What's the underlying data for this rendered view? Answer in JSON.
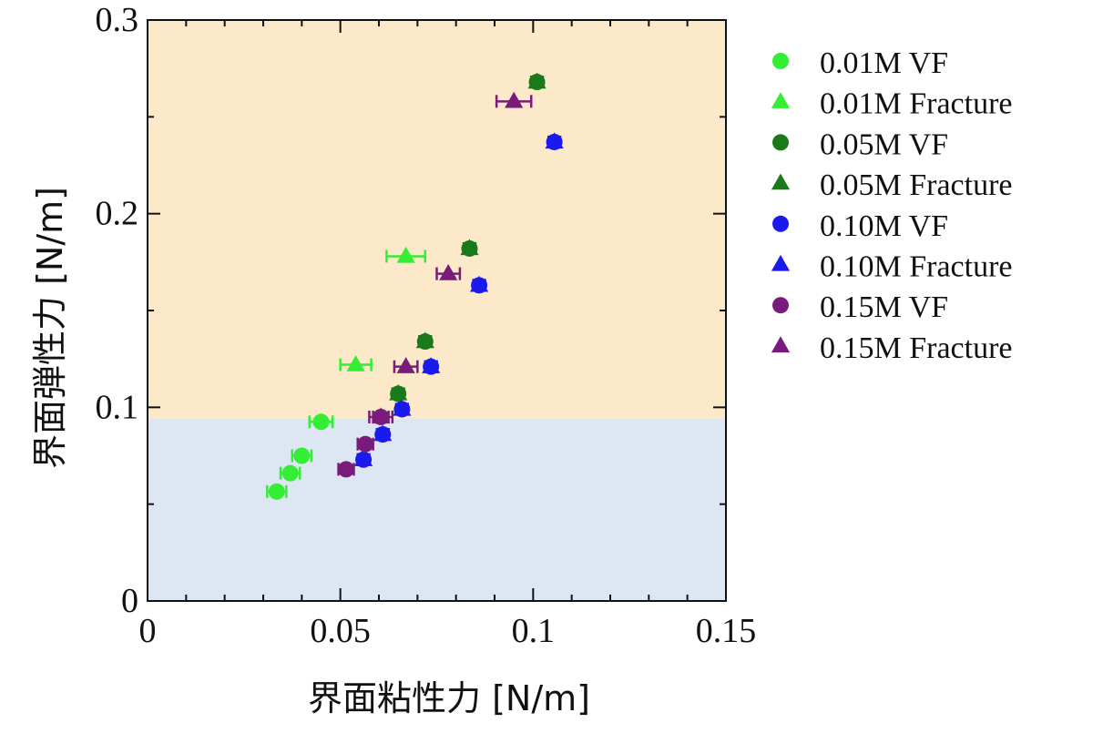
{
  "colors": {
    "background_upper": "#fbe9c9",
    "background_lower": "#dde7f3",
    "frame": "#111111"
  },
  "chart_data": {
    "type": "scatter",
    "xlabel": "界面粘性力 [N/m]",
    "ylabel": "界面弾性力 [N/m]",
    "xlim": [
      0,
      0.15
    ],
    "ylim": [
      0,
      0.3
    ],
    "xticks": [
      0,
      0.05,
      0.1,
      0.15
    ],
    "xtick_labels": [
      "0",
      "0.05",
      "0.1",
      "0.15"
    ],
    "yticks": [
      0,
      0.1,
      0.2,
      0.3
    ],
    "ytick_labels": [
      "0",
      "0.1",
      "0.2",
      "0.3"
    ],
    "grid": false,
    "legend_placement": "right",
    "background_regions": [
      {
        "y_from": 0,
        "y_to": 0.094,
        "color": "#dde7f3"
      },
      {
        "y_from": 0.094,
        "y_to": 0.3,
        "color": "#fbe9c9"
      }
    ],
    "series": [
      {
        "name": "0.01M VF",
        "marker": "circle",
        "color": "#33ee33",
        "points": [
          {
            "x": 0.0335,
            "y": 0.0565,
            "xerr": 0.0025
          },
          {
            "x": 0.037,
            "y": 0.066,
            "xerr": 0.0025
          },
          {
            "x": 0.04,
            "y": 0.075,
            "xerr": 0.0025
          },
          {
            "x": 0.045,
            "y": 0.0925,
            "xerr": 0.003
          }
        ]
      },
      {
        "name": "0.01M Fracture",
        "marker": "triangle",
        "color": "#33ee33",
        "points": [
          {
            "x": 0.054,
            "y": 0.122,
            "xerr": 0.004
          },
          {
            "x": 0.067,
            "y": 0.178,
            "xerr": 0.005
          }
        ]
      },
      {
        "name": "0.05M VF",
        "marker": "circle",
        "color": "#1a7a1a",
        "points": [
          {
            "x": 0.065,
            "y": 0.107,
            "xerr": 0.0015
          },
          {
            "x": 0.072,
            "y": 0.134,
            "xerr": 0.0015
          },
          {
            "x": 0.0835,
            "y": 0.182,
            "xerr": 0.0015
          },
          {
            "x": 0.101,
            "y": 0.268,
            "xerr": 0.0015
          }
        ]
      },
      {
        "name": "0.05M Fracture",
        "marker": "triangle",
        "color": "#1a7a1a",
        "points": [
          {
            "x": 0.065,
            "y": 0.107,
            "xerr": 0.0015
          },
          {
            "x": 0.072,
            "y": 0.134,
            "xerr": 0.0015
          },
          {
            "x": 0.0835,
            "y": 0.182,
            "xerr": 0.0015
          },
          {
            "x": 0.101,
            "y": 0.268,
            "xerr": 0.0015
          }
        ]
      },
      {
        "name": "0.10M VF",
        "marker": "circle",
        "color": "#1a1aee",
        "points": [
          {
            "x": 0.056,
            "y": 0.073,
            "xerr": 0.0015
          },
          {
            "x": 0.061,
            "y": 0.086,
            "xerr": 0.0015
          },
          {
            "x": 0.066,
            "y": 0.099,
            "xerr": 0.0015
          },
          {
            "x": 0.0735,
            "y": 0.121,
            "xerr": 0.0015
          },
          {
            "x": 0.086,
            "y": 0.163,
            "xerr": 0.0015
          },
          {
            "x": 0.1055,
            "y": 0.237,
            "xerr": 0.0015
          }
        ]
      },
      {
        "name": "0.10M Fracture",
        "marker": "triangle",
        "color": "#1a1aee",
        "points": [
          {
            "x": 0.056,
            "y": 0.073,
            "xerr": 0.0015
          },
          {
            "x": 0.061,
            "y": 0.086,
            "xerr": 0.0015
          },
          {
            "x": 0.066,
            "y": 0.099,
            "xerr": 0.0015
          },
          {
            "x": 0.0735,
            "y": 0.121,
            "xerr": 0.0015
          },
          {
            "x": 0.086,
            "y": 0.163,
            "xerr": 0.0015
          },
          {
            "x": 0.1055,
            "y": 0.237,
            "xerr": 0.0015
          }
        ]
      },
      {
        "name": "0.15M VF",
        "marker": "circle",
        "color": "#7a1a7a",
        "points": [
          {
            "x": 0.0515,
            "y": 0.068,
            "xerr": 0.002
          },
          {
            "x": 0.0565,
            "y": 0.081,
            "xerr": 0.002
          },
          {
            "x": 0.0605,
            "y": 0.095,
            "xerr": 0.002
          }
        ]
      },
      {
        "name": "0.15M Fracture",
        "marker": "triangle",
        "color": "#7a1a7a",
        "points": [
          {
            "x": 0.0605,
            "y": 0.095,
            "xerr": 0.003
          },
          {
            "x": 0.067,
            "y": 0.121,
            "xerr": 0.003
          },
          {
            "x": 0.078,
            "y": 0.169,
            "xerr": 0.003
          },
          {
            "x": 0.095,
            "y": 0.258,
            "xerr": 0.0045
          }
        ]
      }
    ]
  }
}
